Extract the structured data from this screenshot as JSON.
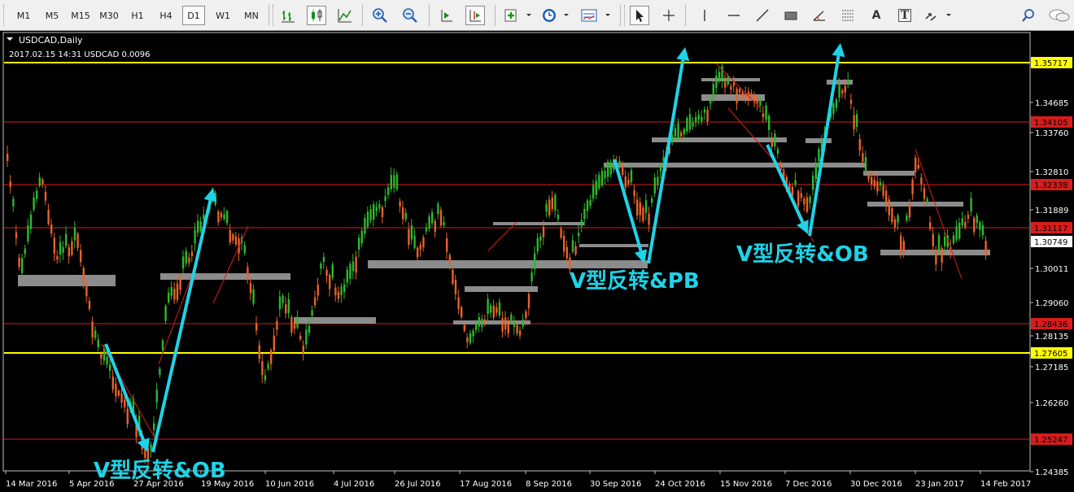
{
  "toolbar": {
    "timeframes": [
      {
        "label": "M1",
        "active": false
      },
      {
        "label": "M5",
        "active": false
      },
      {
        "label": "M15",
        "active": false
      },
      {
        "label": "M30",
        "active": false
      },
      {
        "label": "H1",
        "active": false
      },
      {
        "label": "H4",
        "active": false
      },
      {
        "label": "D1",
        "active": true
      },
      {
        "label": "W1",
        "active": false
      },
      {
        "label": "MN",
        "active": false
      }
    ],
    "tools": [
      "bar-chart-icon",
      "candlestick-chart-icon",
      "line-chart-icon",
      "zoom-in-icon",
      "zoom-out-icon",
      "chart-shift-icon",
      "autoscroll-icon",
      "indicators-icon",
      "periods-icon",
      "templates-icon",
      "cursor-icon",
      "crosshair-icon",
      "vertical-line-icon",
      "horizontal-line-icon",
      "trendline-icon",
      "rectangle-icon",
      "angle-icon",
      "fibonacci-icon",
      "text-icon",
      "text-label-icon",
      "arrows-icon",
      "search-icon",
      "chat-icon"
    ],
    "text_tool_label": "A",
    "label_tool_label": "T"
  },
  "chart": {
    "symbol_title": "USDCAD,Daily",
    "info_line": "2017.02.15 14:31 USDCAD 0.0096",
    "price_ticks": [
      "1.34685",
      "1.33760",
      "1.32810",
      "1.31889",
      "1.30011",
      "1.29060",
      "1.28135",
      "1.27185",
      "1.26260",
      "1.24385"
    ],
    "date_ticks": [
      "14 Mar 2016",
      "5 Apr 2016",
      "27 Apr 2016",
      "19 May 2016",
      "10 Jun 2016",
      "4 Jul 2016",
      "26 Jul 2016",
      "17 Aug 2016",
      "8 Sep 2016",
      "30 Sep 2016",
      "24 Oct 2016",
      "15 Nov 2016",
      "7 Dec 2016",
      "30 Dec 2016",
      "23 Jan 2017",
      "14 Feb 2017"
    ],
    "level_labels": {
      "yellow_top": "1.35717",
      "red_1": "1.34105",
      "red_2": "1.32338",
      "red_3": "1.31117",
      "current": "1.30749",
      "red_4": "1.28436",
      "yellow_bottom": "1.27605",
      "red_5": "1.25247"
    },
    "colors": {
      "bull": "#2db82d",
      "bear": "#e8622a",
      "arrow": "#1fd3e8",
      "yellow": "#ffff00",
      "red": "#d81c1c",
      "zone": "#8c8c8c"
    },
    "annotations": [
      {
        "text": "V型反转&OB"
      },
      {
        "text": "V型反转&PB"
      },
      {
        "text": "V型反转&OB"
      }
    ]
  }
}
